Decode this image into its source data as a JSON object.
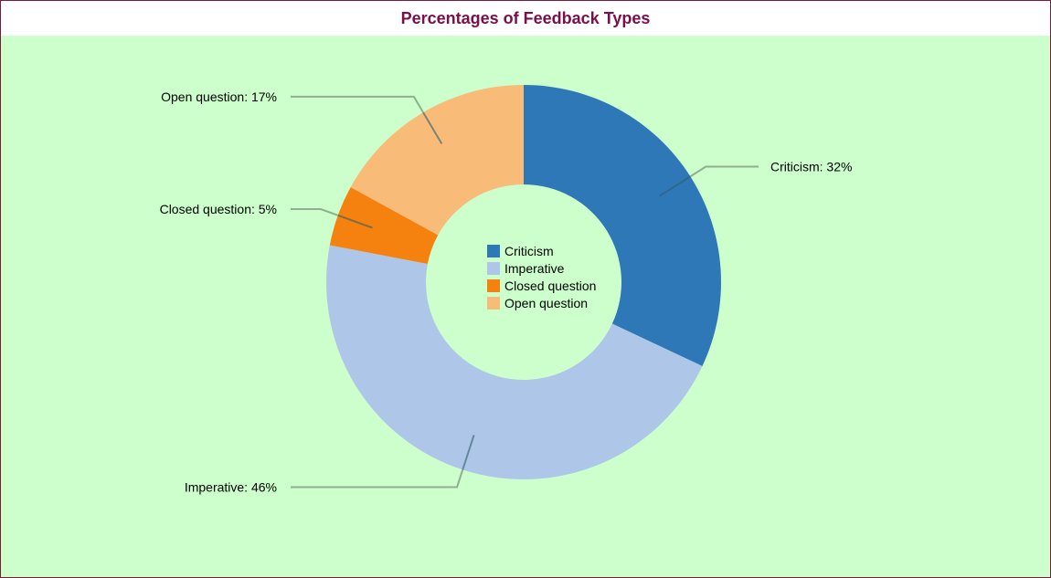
{
  "chart_data": {
    "type": "pie",
    "variant": "donut",
    "title": "Percentages of Feedback Types",
    "categories": [
      "Criticism",
      "Imperative",
      "Closed question",
      "Open question"
    ],
    "values": [
      32,
      46,
      5,
      17
    ],
    "unit": "%",
    "colors": [
      "#2e78b7",
      "#aec7e8",
      "#f5810f",
      "#f8bb78"
    ],
    "slice_labels": [
      "Criticism: 32%",
      "Imperative: 46%",
      "Closed question: 5%",
      "Open question: 17%"
    ],
    "legend": {
      "placement": "center",
      "items": [
        "Criticism",
        "Imperative",
        "Closed question",
        "Open question"
      ]
    },
    "start_angle_deg": 0,
    "direction": "clockwise"
  },
  "theme": {
    "background": "#ccffcc",
    "title_color": "#7a0f4a",
    "leader_color": "#8faf8f",
    "leader_inner_color": "#2f5e6e"
  }
}
